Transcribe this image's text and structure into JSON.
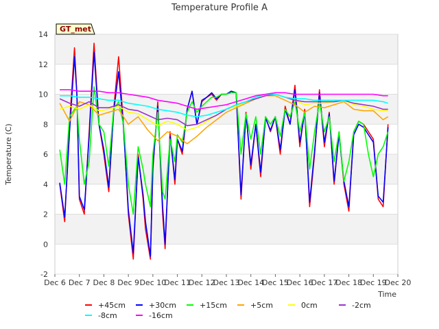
{
  "chart_data": {
    "type": "line",
    "title": "Temperature Profile A",
    "xlabel": "Time",
    "ylabel": "Temperature (C)",
    "badge": "GT_met",
    "ylim": [
      -2,
      14
    ],
    "yticks": [
      -2,
      0,
      2,
      4,
      6,
      8,
      10,
      12,
      14
    ],
    "xlim": [
      6,
      20
    ],
    "xticks": [
      {
        "value": 6,
        "label": "Dec 6"
      },
      {
        "value": 7,
        "label": "Dec 7"
      },
      {
        "value": 8,
        "label": "Dec 8"
      },
      {
        "value": 9,
        "label": "Dec 9"
      },
      {
        "value": 10,
        "label": "Dec 10"
      },
      {
        "value": 11,
        "label": "Dec 11"
      },
      {
        "value": 12,
        "label": "Dec 12"
      },
      {
        "value": 13,
        "label": "Dec 13"
      },
      {
        "value": 14,
        "label": "Dec 14"
      },
      {
        "value": 15,
        "label": "Dec 15"
      },
      {
        "value": 16,
        "label": "Dec 16"
      },
      {
        "value": 17,
        "label": "Dec 17"
      },
      {
        "value": 18,
        "label": "Dec 18"
      },
      {
        "value": 19,
        "label": "Dec 19"
      },
      {
        "value": 20,
        "label": "Dec 20"
      }
    ],
    "grid": true,
    "legend_position": "bottom",
    "series": [
      {
        "name": "+45cm",
        "color": "#ff0000",
        "x": [
          6.2,
          6.4,
          6.6,
          6.8,
          6.9,
          7.0,
          7.2,
          7.4,
          7.6,
          7.8,
          8.0,
          8.2,
          8.4,
          8.6,
          8.8,
          9.0,
          9.2,
          9.4,
          9.6,
          9.7,
          9.9,
          10.0,
          10.2,
          10.4,
          10.5,
          10.7,
          10.9,
          11.0,
          11.2,
          11.4,
          11.6,
          11.8,
          12.0,
          12.2,
          12.4,
          12.6,
          12.8,
          13.0,
          13.2,
          13.4,
          13.6,
          13.8,
          14.0,
          14.2,
          14.4,
          14.6,
          14.8,
          15.0,
          15.2,
          15.4,
          15.6,
          15.8,
          16.0,
          16.2,
          16.4,
          16.6,
          16.8,
          17.0,
          17.2,
          17.4,
          17.6,
          17.8,
          18.0,
          18.2,
          18.4,
          18.6,
          18.8,
          19.0,
          19.2,
          19.4,
          19.6
        ],
        "y": [
          4.0,
          1.5,
          8.0,
          13.1,
          10.0,
          3.0,
          2.0,
          7.5,
          13.4,
          8.0,
          6.0,
          3.5,
          9.0,
          12.5,
          8.0,
          2.0,
          -1.0,
          6.0,
          3.0,
          1.0,
          -1.0,
          5.0,
          9.5,
          2.0,
          -0.3,
          7.5,
          4.0,
          7.0,
          6.0,
          9.0,
          10.2,
          8.0,
          9.5,
          9.8,
          10.0,
          9.6,
          10.0,
          10.0,
          10.2,
          10.1,
          3.0,
          8.8,
          5.0,
          8.0,
          4.5,
          8.5,
          7.5,
          8.5,
          6.0,
          9.2,
          8.0,
          10.6,
          6.5,
          9.0,
          2.5,
          6.0,
          10.3,
          6.5,
          8.8,
          4.0,
          7.5,
          4.0,
          2.2,
          7.5,
          8.2,
          8.0,
          7.5,
          7.0,
          3.0,
          2.5,
          8.0
        ]
      },
      {
        "name": "+30cm",
        "color": "#0000ff",
        "x": [
          6.2,
          6.4,
          6.6,
          6.8,
          6.9,
          7.0,
          7.2,
          7.4,
          7.6,
          7.8,
          8.0,
          8.2,
          8.4,
          8.6,
          8.8,
          9.0,
          9.2,
          9.4,
          9.6,
          9.7,
          9.9,
          10.0,
          10.2,
          10.4,
          10.5,
          10.7,
          10.9,
          11.0,
          11.2,
          11.4,
          11.6,
          11.8,
          12.0,
          12.2,
          12.4,
          12.6,
          12.8,
          13.0,
          13.2,
          13.4,
          13.6,
          13.8,
          14.0,
          14.2,
          14.4,
          14.6,
          14.8,
          15.0,
          15.2,
          15.4,
          15.6,
          15.8,
          16.0,
          16.2,
          16.4,
          16.6,
          16.8,
          17.0,
          17.2,
          17.4,
          17.6,
          17.8,
          18.0,
          18.2,
          18.4,
          18.6,
          18.8,
          19.0,
          19.2,
          19.4,
          19.6
        ],
        "y": [
          4.1,
          1.8,
          7.5,
          12.5,
          10.0,
          3.2,
          2.3,
          7.2,
          12.8,
          8.0,
          6.3,
          3.8,
          8.8,
          11.5,
          7.8,
          2.3,
          -0.6,
          5.8,
          3.3,
          1.5,
          -0.8,
          5.2,
          9.2,
          2.5,
          0.0,
          7.2,
          4.3,
          7.0,
          6.2,
          9.0,
          10.2,
          8.0,
          9.6,
          9.8,
          10.1,
          9.7,
          10.0,
          10.0,
          10.2,
          10.1,
          3.3,
          8.7,
          5.3,
          8.0,
          4.8,
          8.4,
          7.6,
          8.5,
          6.3,
          9.0,
          8.0,
          10.3,
          6.8,
          8.8,
          2.8,
          6.2,
          10.1,
          6.8,
          8.7,
          4.2,
          7.3,
          4.2,
          2.5,
          7.3,
          8.0,
          7.8,
          7.3,
          6.8,
          3.2,
          2.8,
          7.8
        ]
      },
      {
        "name": "+15cm",
        "color": "#00ff00",
        "x": [
          6.2,
          6.4,
          6.6,
          6.8,
          6.9,
          7.0,
          7.2,
          7.4,
          7.6,
          7.8,
          8.0,
          8.2,
          8.4,
          8.6,
          8.8,
          9.0,
          9.2,
          9.4,
          9.6,
          9.7,
          9.9,
          10.0,
          10.2,
          10.4,
          10.5,
          10.7,
          10.9,
          11.0,
          11.2,
          11.4,
          11.6,
          11.8,
          12.0,
          12.2,
          12.4,
          12.6,
          12.8,
          13.0,
          13.2,
          13.4,
          13.6,
          13.8,
          14.0,
          14.2,
          14.4,
          14.6,
          14.8,
          15.0,
          15.2,
          15.4,
          15.6,
          15.8,
          16.0,
          16.2,
          16.4,
          16.6,
          16.8,
          17.0,
          17.2,
          17.4,
          17.6,
          17.8,
          18.0,
          18.2,
          18.4,
          18.6,
          18.8,
          19.0,
          19.2,
          19.4,
          19.6
        ],
        "y": [
          6.3,
          4.0,
          8.5,
          9.0,
          9.2,
          7.0,
          4.0,
          5.5,
          10.5,
          8.0,
          7.5,
          5.2,
          9.0,
          9.5,
          8.0,
          4.0,
          2.0,
          6.5,
          5.0,
          4.0,
          2.5,
          6.0,
          8.8,
          3.5,
          3.0,
          7.0,
          5.5,
          7.3,
          6.8,
          8.8,
          9.5,
          8.8,
          9.2,
          9.5,
          9.8,
          9.8,
          10.0,
          10.0,
          10.1,
          10.1,
          6.0,
          8.7,
          7.0,
          8.5,
          6.0,
          8.5,
          8.0,
          8.5,
          7.2,
          9.0,
          8.5,
          9.5,
          7.5,
          8.8,
          5.0,
          7.5,
          9.5,
          7.5,
          8.5,
          5.5,
          7.5,
          4.2,
          5.5,
          7.5,
          8.2,
          8.0,
          6.0,
          4.5,
          6.0,
          6.5,
          7.5
        ]
      },
      {
        "name": "+5cm",
        "color": "#ffa500",
        "x": [
          6.2,
          6.6,
          7.0,
          7.4,
          7.8,
          8.2,
          8.6,
          9.0,
          9.4,
          9.8,
          10.2,
          10.6,
          11.0,
          11.4,
          11.8,
          12.2,
          12.6,
          13.0,
          13.4,
          13.8,
          14.2,
          14.6,
          15.0,
          15.4,
          15.8,
          16.2,
          16.6,
          17.0,
          17.4,
          17.8,
          18.2,
          18.6,
          19.0,
          19.4,
          19.6
        ],
        "y": [
          9.4,
          8.2,
          9.5,
          9.3,
          8.6,
          8.8,
          9.0,
          8.0,
          8.5,
          7.6,
          6.9,
          7.5,
          7.2,
          6.7,
          7.2,
          7.8,
          8.3,
          8.8,
          9.1,
          9.4,
          9.7,
          9.9,
          9.9,
          9.6,
          9.3,
          8.8,
          9.2,
          9.1,
          9.3,
          9.5,
          9.0,
          8.9,
          8.9,
          8.3,
          8.5
        ]
      },
      {
        "name": "0cm",
        "color": "#ffff00",
        "x": [
          6.2,
          6.6,
          7.0,
          7.4,
          7.8,
          8.2,
          8.6,
          9.0,
          9.4,
          9.8,
          10.2,
          10.6,
          11.0,
          11.4,
          11.8,
          12.2,
          12.6,
          13.0,
          13.4,
          13.8,
          14.2,
          14.6,
          15.0,
          15.4,
          15.8,
          16.2,
          16.6,
          17.0,
          17.4,
          17.8,
          18.2,
          18.6,
          19.0,
          19.4,
          19.6
        ],
        "y": [
          9.0,
          9.2,
          9.0,
          9.3,
          8.9,
          9.0,
          9.2,
          8.8,
          8.7,
          8.3,
          7.9,
          8.2,
          8.0,
          7.6,
          7.8,
          8.2,
          8.6,
          9.0,
          9.2,
          9.5,
          9.7,
          9.9,
          10.0,
          9.8,
          9.6,
          9.3,
          9.4,
          9.4,
          9.5,
          9.6,
          9.3,
          9.2,
          9.0,
          8.9,
          8.9
        ]
      },
      {
        "name": "-2cm",
        "color": "#9932cc",
        "x": [
          6.2,
          6.6,
          7.0,
          7.4,
          7.8,
          8.2,
          8.6,
          9.0,
          9.4,
          9.8,
          10.2,
          10.6,
          11.0,
          11.4,
          11.8,
          12.2,
          12.6,
          13.0,
          13.4,
          13.8,
          14.2,
          14.6,
          15.0,
          15.4,
          15.8,
          16.2,
          16.6,
          17.0,
          17.4,
          17.8,
          18.2,
          18.6,
          19.0,
          19.4,
          19.6
        ],
        "y": [
          9.7,
          9.4,
          9.2,
          9.5,
          9.1,
          9.1,
          9.3,
          9.0,
          8.9,
          8.6,
          8.3,
          8.4,
          8.3,
          7.9,
          8.0,
          8.3,
          8.6,
          9.0,
          9.3,
          9.5,
          9.7,
          9.9,
          10.0,
          9.8,
          9.6,
          9.5,
          9.5,
          9.5,
          9.5,
          9.6,
          9.4,
          9.3,
          9.2,
          9.0,
          9.0
        ]
      },
      {
        "name": "-8cm",
        "color": "#00ffff",
        "x": [
          6.2,
          6.6,
          7.0,
          7.4,
          7.8,
          8.2,
          8.6,
          9.0,
          9.4,
          9.8,
          10.2,
          10.6,
          11.0,
          11.4,
          11.8,
          12.2,
          12.6,
          13.0,
          13.4,
          13.8,
          14.2,
          14.6,
          15.0,
          15.4,
          15.8,
          16.2,
          16.6,
          17.0,
          17.4,
          17.8,
          18.2,
          18.6,
          19.0,
          19.4,
          19.6
        ],
        "y": [
          9.9,
          9.9,
          9.8,
          9.8,
          9.7,
          9.6,
          9.6,
          9.4,
          9.3,
          9.2,
          9.0,
          8.9,
          8.8,
          8.6,
          8.5,
          8.6,
          8.8,
          9.0,
          9.3,
          9.5,
          9.8,
          10.0,
          10.0,
          9.8,
          9.7,
          9.7,
          9.6,
          9.6,
          9.6,
          9.6,
          9.6,
          9.6,
          9.6,
          9.5,
          9.4
        ]
      },
      {
        "name": "-16cm",
        "color": "#ff00ff",
        "x": [
          6.2,
          6.6,
          7.0,
          7.4,
          7.8,
          8.2,
          8.6,
          9.0,
          9.4,
          9.8,
          10.2,
          10.6,
          11.0,
          11.4,
          11.8,
          12.2,
          12.6,
          13.0,
          13.4,
          13.8,
          14.2,
          14.6,
          15.0,
          15.4,
          15.8,
          16.2,
          16.6,
          17.0,
          17.4,
          17.8,
          18.2,
          18.6,
          19.0,
          19.4,
          19.6
        ],
        "y": [
          10.3,
          10.3,
          10.2,
          10.2,
          10.2,
          10.1,
          10.1,
          10.0,
          9.9,
          9.8,
          9.6,
          9.5,
          9.4,
          9.2,
          9.0,
          9.1,
          9.2,
          9.3,
          9.5,
          9.7,
          9.9,
          10.0,
          10.1,
          10.1,
          10.0,
          10.0,
          10.0,
          10.0,
          10.0,
          10.0,
          10.0,
          10.0,
          10.0,
          9.9,
          9.9
        ]
      }
    ]
  }
}
